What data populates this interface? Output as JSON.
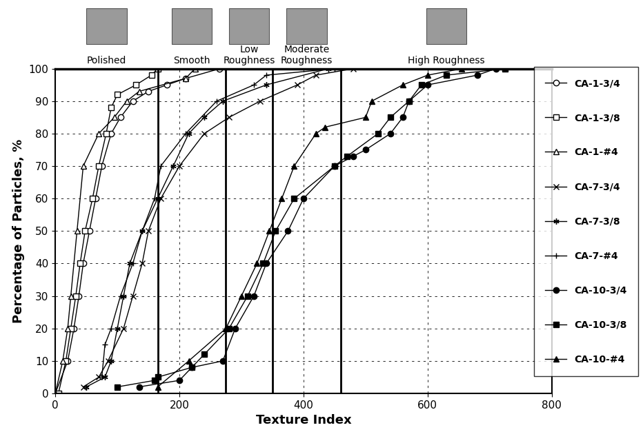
{
  "chart_data": {
    "type": "line",
    "x_label": "Texture Index",
    "y_label": "Percentage of Particles, %",
    "xlim": [
      0,
      800
    ],
    "xticks": [
      0,
      200,
      400,
      600,
      800
    ],
    "ylim": [
      0,
      100
    ],
    "yticks": [
      0,
      10,
      20,
      30,
      40,
      50,
      60,
      70,
      80,
      90,
      100
    ],
    "grid": true,
    "legend": "center right",
    "thresholds": [
      165,
      275,
      350,
      460
    ],
    "categories": [
      "Polished",
      "Smooth",
      "Low\nRoughness",
      "Moderate\nRoughness",
      "High Roughness"
    ],
    "series": [
      {
        "name": "CA-1-3/4",
        "color": "#000000",
        "marker": "open_circle",
        "line_style": "solid",
        "x": [
          0,
          20,
          30,
          38,
          45,
          55,
          65,
          75,
          90,
          105,
          125,
          150,
          180,
          210,
          265
        ],
        "values": [
          0,
          10,
          20,
          30,
          40,
          50,
          60,
          70,
          80,
          85,
          90,
          93,
          95,
          97,
          100
        ]
      },
      {
        "name": "CA-1-3/8",
        "color": "#000000",
        "marker": "open_square",
        "line_style": "solid",
        "x": [
          5,
          17,
          25,
          33,
          40,
          48,
          60,
          70,
          82,
          90,
          100,
          130,
          155,
          165
        ],
        "values": [
          0,
          10,
          20,
          30,
          40,
          50,
          60,
          70,
          80,
          88,
          92,
          95,
          98,
          100
        ]
      },
      {
        "name": "CA-1-#4",
        "color": "#000000",
        "marker": "open_triangle",
        "line_style": "solid",
        "x": [
          0,
          12,
          20,
          25,
          35,
          45,
          70,
          95,
          115,
          135,
          210,
          225
        ],
        "values": [
          0,
          10,
          20,
          30,
          50,
          70,
          80,
          85,
          90,
          93,
          97,
          100
        ]
      },
      {
        "name": "CA-7-3/4",
        "color": "#000000",
        "marker": "x",
        "line_style": "solid",
        "x": [
          45,
          70,
          85,
          110,
          125,
          140,
          150,
          170,
          200,
          240,
          280,
          330,
          390,
          420,
          480
        ],
        "values": [
          2,
          5,
          10,
          20,
          30,
          40,
          50,
          60,
          70,
          80,
          85,
          90,
          95,
          98,
          100
        ]
      },
      {
        "name": "CA-7-3/8",
        "color": "#000000",
        "marker": "asterisk",
        "line_style": "solid",
        "x": [
          50,
          80,
          90,
          100,
          110,
          120,
          140,
          165,
          190,
          215,
          240,
          270,
          340,
          440
        ],
        "values": [
          2,
          5,
          10,
          20,
          30,
          40,
          50,
          60,
          70,
          80,
          85,
          90,
          95,
          100
        ]
      },
      {
        "name": "CA-7-#4",
        "color": "#000000",
        "marker": "plus",
        "line_style": "solid",
        "x": [
          75,
          80,
          90,
          105,
          125,
          140,
          160,
          170,
          210,
          260,
          320,
          340,
          450
        ],
        "values": [
          5,
          15,
          20,
          30,
          40,
          50,
          60,
          70,
          80,
          90,
          95,
          98,
          100
        ]
      },
      {
        "name": "CA-10-3/4",
        "color": "#000000",
        "marker": "filled_circle",
        "line_style": "solid",
        "x": [
          135,
          200,
          220,
          270,
          290,
          320,
          340,
          375,
          400,
          450,
          480,
          500,
          540,
          560,
          570,
          600,
          680,
          710
        ],
        "values": [
          2,
          4,
          8,
          10,
          20,
          30,
          40,
          50,
          60,
          70,
          73,
          75,
          80,
          85,
          90,
          95,
          98,
          100
        ]
      },
      {
        "name": "CA-10-3/8",
        "color": "#000000",
        "marker": "filled_square",
        "line_style": "solid",
        "x": [
          100,
          160,
          165,
          220,
          240,
          280,
          310,
          335,
          355,
          385,
          450,
          470,
          520,
          540,
          570,
          590,
          630,
          725
        ],
        "values": [
          2,
          4,
          5,
          8,
          12,
          20,
          30,
          40,
          50,
          60,
          70,
          73,
          80,
          85,
          90,
          95,
          98,
          100
        ]
      },
      {
        "name": "CA-10-#4",
        "color": "#000000",
        "marker": "filled_triangle",
        "line_style": "solid",
        "x": [
          165,
          215,
          275,
          300,
          325,
          345,
          365,
          385,
          420,
          435,
          500,
          510,
          560,
          600,
          655
        ],
        "values": [
          2,
          10,
          20,
          30,
          40,
          50,
          60,
          70,
          80,
          82,
          85,
          90,
          95,
          98,
          100
        ]
      }
    ]
  }
}
